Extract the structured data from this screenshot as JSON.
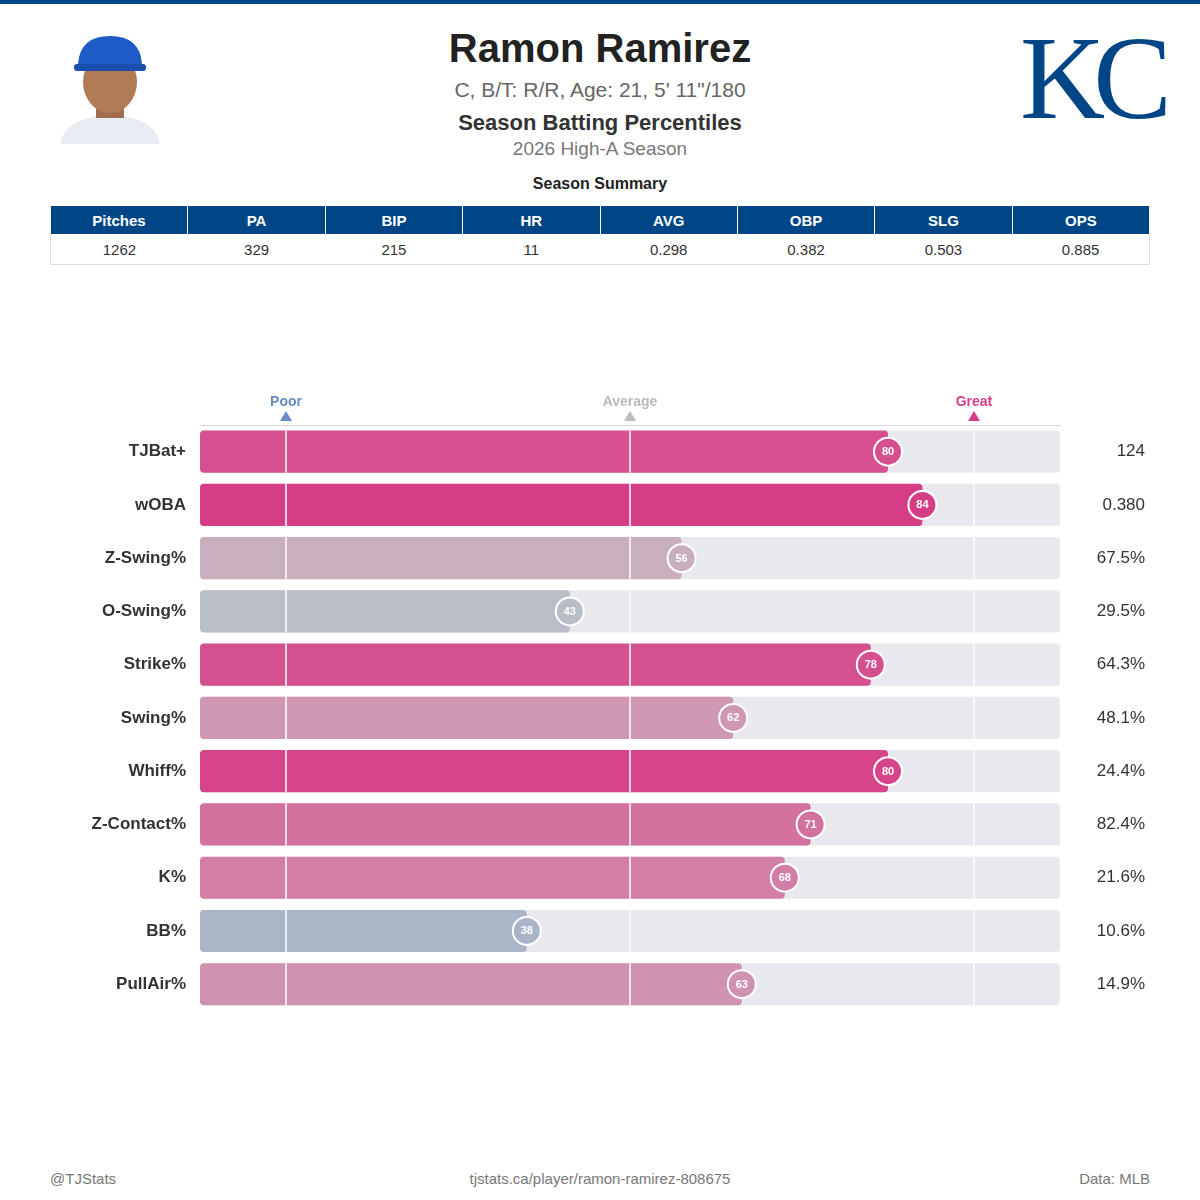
{
  "header": {
    "name": "Ramon Ramirez",
    "subtitle": "C, B/T: R/R, Age: 21, 5' 11\"/180",
    "title": "Season Batting Percentiles",
    "season": "2026 High-A Season",
    "logo": "KC"
  },
  "summary": {
    "title": "Season Summary",
    "columns": [
      "Pitches",
      "PA",
      "BIP",
      "HR",
      "AVG",
      "OBP",
      "SLG",
      "OPS"
    ],
    "values": [
      "1262",
      "329",
      "215",
      "11",
      "0.298",
      "0.382",
      "0.503",
      "0.885"
    ]
  },
  "chart_data": {
    "type": "bar",
    "orientation": "horizontal",
    "categories": [
      "TJBat+",
      "wOBA",
      "Z-Swing%",
      "O-Swing%",
      "Strike%",
      "Swing%",
      "Whiff%",
      "Z-Contact%",
      "K%",
      "BB%",
      "PullAir%"
    ],
    "values": [
      80,
      84,
      56,
      43,
      78,
      62,
      80,
      71,
      68,
      38,
      63
    ],
    "colors": [
      "#d6508f",
      "#d63d87",
      "#c9afbd",
      "#b9bdc8",
      "#d5508f",
      "#cf97b1",
      "#d6458a",
      "#d2709e",
      "#d27ea6",
      "#aab4c7",
      "#cf92b0"
    ],
    "xlim": [
      0,
      100
    ],
    "xticks": [
      {
        "value": 10,
        "label": "Poor"
      },
      {
        "value": 50,
        "label": "Average"
      },
      {
        "value": 90,
        "label": "Great"
      }
    ],
    "grid": true,
    "data_labels": true
  },
  "stat_column": [
    "124",
    "0.380",
    "67.5%",
    "29.5%",
    "64.3%",
    "48.1%",
    "24.4%",
    "82.4%",
    "21.6%",
    "10.6%",
    "14.9%"
  ],
  "footer": {
    "left": "@TJStats",
    "center": "tjstats.ca/player/ramon-ramirez-808675",
    "right": "Data: MLB"
  }
}
